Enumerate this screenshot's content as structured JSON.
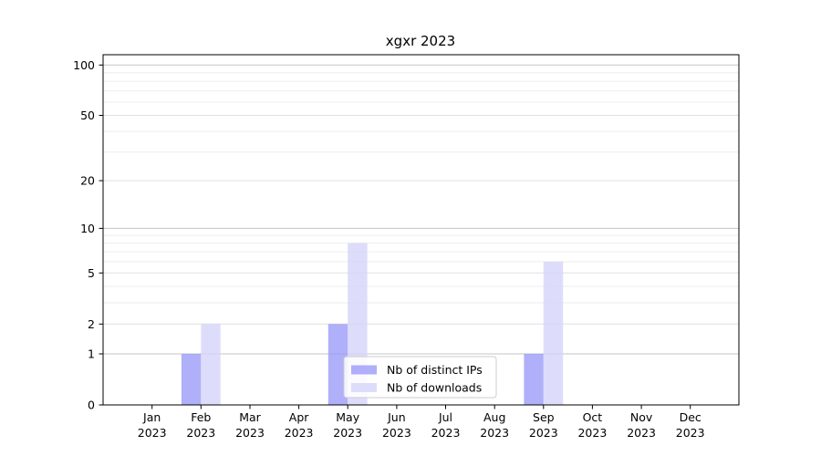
{
  "chart_data": {
    "type": "bar",
    "title": "xgxr 2023",
    "categories": [
      "Jan 2023",
      "Feb 2023",
      "Mar 2023",
      "Apr 2023",
      "May 2023",
      "Jun 2023",
      "Jul 2023",
      "Aug 2023",
      "Sep 2023",
      "Oct 2023",
      "Nov 2023",
      "Dec 2023"
    ],
    "series": [
      {
        "name": "Nb of distinct IPs",
        "color": "#9898f8",
        "values": [
          0,
          1,
          0,
          0,
          2,
          0,
          0,
          0,
          1,
          0,
          0,
          0
        ]
      },
      {
        "name": "Nb of downloads",
        "color": "#d4d4fa",
        "values": [
          0,
          2,
          0,
          0,
          8,
          0,
          0,
          0,
          6,
          0,
          0,
          0
        ]
      }
    ],
    "xlabel": "",
    "ylabel": "",
    "y_scale": "log1p",
    "y_ticks": [
      0,
      1,
      2,
      5,
      10,
      20,
      50,
      100
    ],
    "y_minor_ticks": [
      3,
      4,
      6,
      7,
      8,
      9,
      30,
      40,
      60,
      70,
      80,
      90
    ],
    "ylim": [
      0,
      115
    ],
    "grid": true,
    "legend_position": "bottom-center",
    "colors": {
      "decade_gridline": "#c6c6c6",
      "labeled_gridline": "#e0e0e0",
      "minor_gridline": "#ededed",
      "axis": "#000000",
      "legend_border": "#cccccc",
      "legend_background": "#ffffff"
    }
  }
}
